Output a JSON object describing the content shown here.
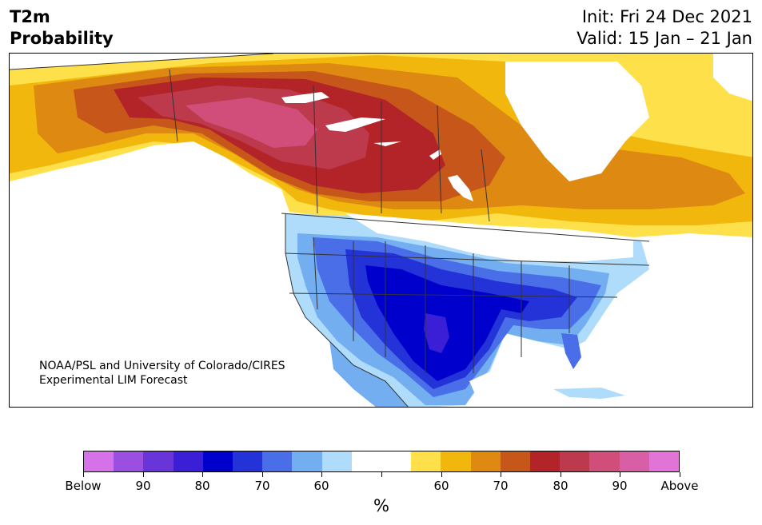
{
  "title": {
    "line1": "T2m",
    "line2": "Probability"
  },
  "header_right": {
    "init": "Init: Fri 24 Dec 2021",
    "valid": "Valid: 15 Jan – 21 Jan"
  },
  "credit": {
    "line1": "NOAA/PSL and University of Colorado/CIRES",
    "line2": "Experimental LIM Forecast"
  },
  "colorbar": {
    "colors": [
      "#d672e8",
      "#9a4fe0",
      "#6a35d8",
      "#3b1fd6",
      "#0000cc",
      "#2433d8",
      "#4a6ee8",
      "#73aef0",
      "#aedcfa",
      "#ffffff",
      "#ffffff",
      "#fee04a",
      "#f2b70c",
      "#de8a12",
      "#c6561a",
      "#b22428",
      "#bd3a4c",
      "#d14e7a",
      "#d85ea6",
      "#e274d8"
    ],
    "labels": [
      "Below",
      "90",
      "80",
      "70",
      "60",
      "",
      "60",
      "70",
      "80",
      "90",
      "Above"
    ],
    "unit": "%"
  },
  "map_colors": {
    "above_50": "#fee04a",
    "above_60": "#f2b70c",
    "above_70": "#de8a12",
    "above_75": "#c6561a",
    "above_80": "#b22428",
    "above_85": "#bd3a4c",
    "above_90": "#d14e7a",
    "below_50": "#aedcfa",
    "below_60": "#73aef0",
    "below_70": "#4a6ee8",
    "below_75": "#2433d8",
    "below_80": "#0000cc",
    "below_85": "#3b1fd6",
    "water": "#ffffff",
    "border": "#333333"
  }
}
